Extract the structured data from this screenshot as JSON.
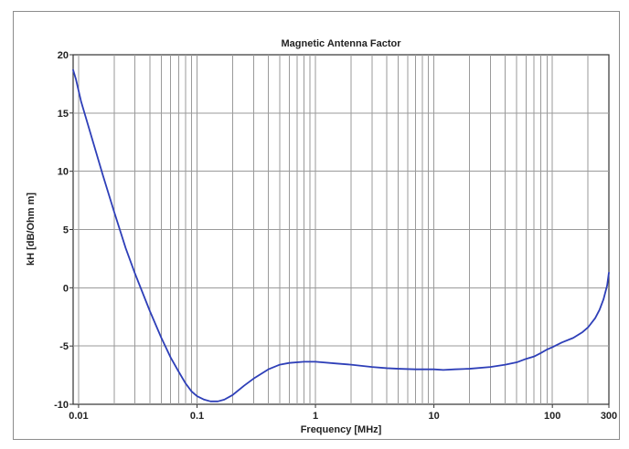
{
  "chart_data": {
    "type": "line",
    "title": "Magnetic Antenna Factor",
    "xlabel": "Frequency [MHz]",
    "ylabel": "kH [dB/Ohm m]",
    "xscale": "log",
    "xlim": [
      0.009,
      300
    ],
    "ylim": [
      -10,
      20
    ],
    "grid": true,
    "x_ticks": [
      {
        "value": 0.01,
        "label": "0.01"
      },
      {
        "value": 0.1,
        "label": "0.1"
      },
      {
        "value": 1,
        "label": "1"
      },
      {
        "value": 10,
        "label": "10"
      },
      {
        "value": 100,
        "label": "100"
      },
      {
        "value": 300,
        "label": "300"
      }
    ],
    "y_ticks": [
      {
        "value": 20,
        "label": "20"
      },
      {
        "value": 15,
        "label": "15"
      },
      {
        "value": 10,
        "label": "10"
      },
      {
        "value": 5,
        "label": "5"
      },
      {
        "value": 0,
        "label": "0"
      },
      {
        "value": -5,
        "label": "-5"
      },
      {
        "value": -10,
        "label": "-10"
      }
    ],
    "series": [
      {
        "color": "#2e3fb8",
        "x": [
          0.009,
          0.0095,
          0.0105,
          0.012,
          0.014,
          0.016,
          0.02,
          0.025,
          0.03,
          0.04,
          0.05,
          0.06,
          0.07,
          0.08,
          0.09,
          0.1,
          0.115,
          0.13,
          0.15,
          0.17,
          0.2,
          0.25,
          0.3,
          0.4,
          0.5,
          0.6,
          0.8,
          1,
          1.5,
          2,
          3,
          4,
          5,
          7,
          10,
          12,
          15,
          20,
          30,
          40,
          50,
          60,
          70,
          80,
          90,
          100,
          120,
          150,
          180,
          200,
          230,
          250,
          270,
          290,
          300
        ],
        "y": [
          18.7,
          17.9,
          16.0,
          14.0,
          11.7,
          9.7,
          6.5,
          3.4,
          1.2,
          -2.0,
          -4.3,
          -6.0,
          -7.2,
          -8.2,
          -8.9,
          -9.3,
          -9.6,
          -9.75,
          -9.75,
          -9.6,
          -9.2,
          -8.4,
          -7.8,
          -7.0,
          -6.6,
          -6.45,
          -6.35,
          -6.35,
          -6.5,
          -6.6,
          -6.8,
          -6.9,
          -6.95,
          -7.0,
          -7.0,
          -7.05,
          -7.0,
          -6.95,
          -6.8,
          -6.6,
          -6.4,
          -6.1,
          -5.9,
          -5.6,
          -5.3,
          -5.1,
          -4.7,
          -4.3,
          -3.8,
          -3.4,
          -2.6,
          -1.9,
          -1.0,
          0.2,
          1.3
        ]
      }
    ]
  }
}
